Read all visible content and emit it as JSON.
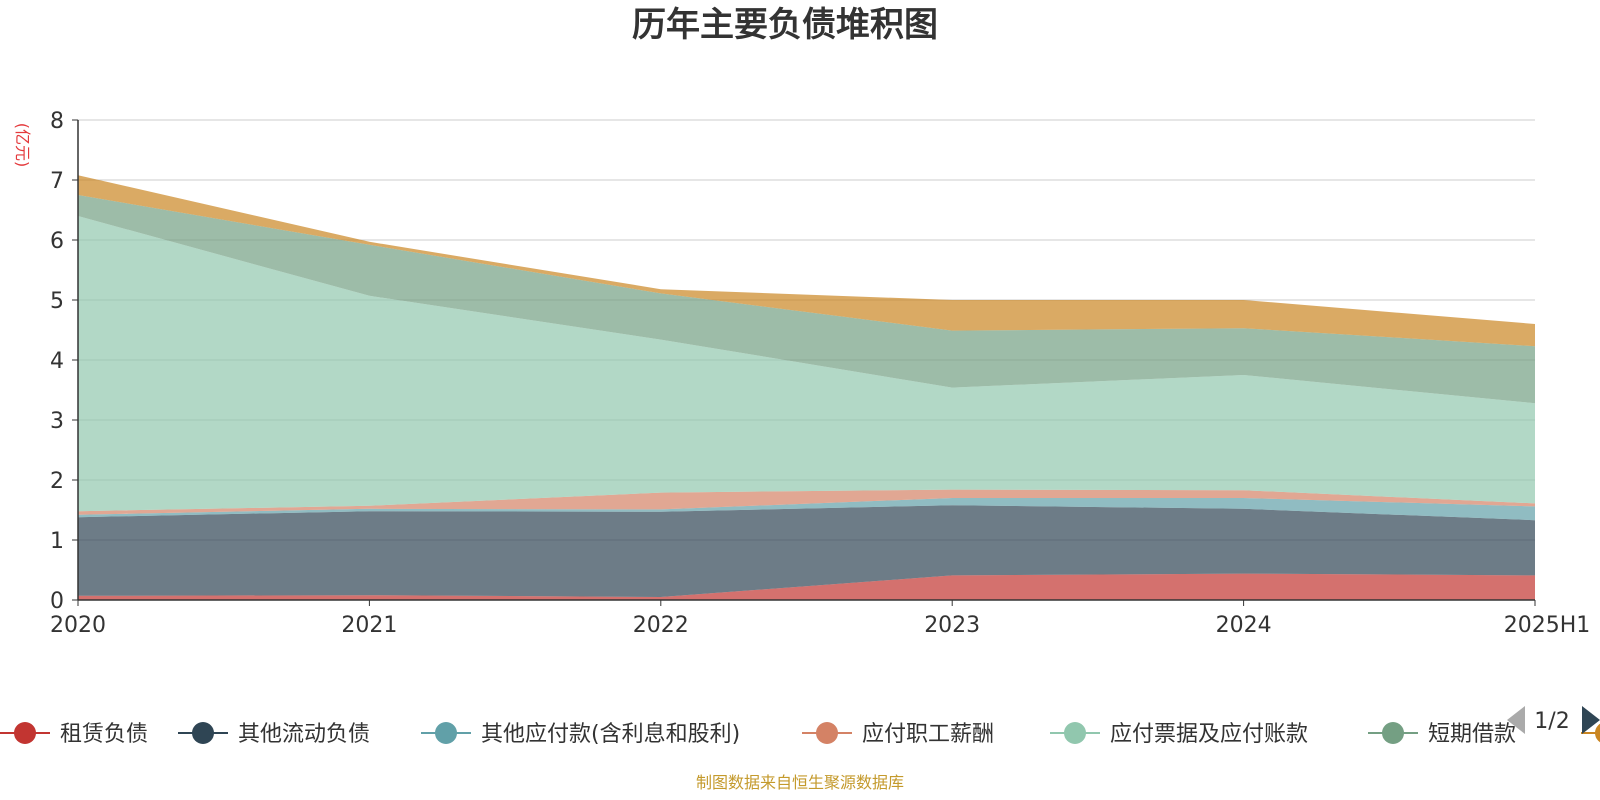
{
  "chart_data": {
    "type": "area",
    "stacked": true,
    "title": "历年主要负债堆积图",
    "unit_label": "(亿元)",
    "categories": [
      "2020",
      "2021",
      "2022",
      "2023",
      "2024",
      "2025H1"
    ],
    "y_ticks": [
      "0",
      "1",
      "2",
      "3",
      "4",
      "5",
      "6",
      "7",
      "8"
    ],
    "ylim": [
      0,
      8
    ],
    "grid": true,
    "legend_position": "bottom",
    "series": [
      {
        "name": "租赁负债",
        "color": "#c23531",
        "values": [
          0.07,
          0.08,
          0.05,
          0.41,
          0.44,
          0.41
        ]
      },
      {
        "name": "其他流动负债",
        "color": "#2f4554",
        "values": [
          1.31,
          1.4,
          1.42,
          1.17,
          1.08,
          0.92
        ]
      },
      {
        "name": "其他应付款(含利息和股利)",
        "color": "#61a0a8",
        "values": [
          0.04,
          0.04,
          0.04,
          0.12,
          0.18,
          0.23
        ]
      },
      {
        "name": "应付职工薪酬",
        "color": "#d48265",
        "values": [
          0.06,
          0.05,
          0.28,
          0.14,
          0.13,
          0.05
        ]
      },
      {
        "name": "应付票据及应付账款",
        "color": "#91c7ae",
        "values": [
          4.92,
          3.5,
          2.55,
          1.7,
          1.92,
          1.67
        ]
      },
      {
        "name": "短期借款",
        "color": "#749f83",
        "values": [
          0.35,
          0.85,
          0.77,
          0.95,
          0.78,
          0.95
        ]
      },
      {
        "name": "",
        "color": "#ca8622",
        "values": [
          0.33,
          0.05,
          0.07,
          0.51,
          0.47,
          0.37
        ]
      }
    ]
  },
  "legend_pager": {
    "text": "1/2"
  },
  "source_note": "制图数据来自恒生聚源数据库",
  "colors": {
    "axis": "#333333",
    "grid": "#cccccc",
    "unit": "#e4393c",
    "source": "#c49a2c",
    "pager_inactive": "#aaaaaa",
    "pager_active": "#2f4554"
  }
}
